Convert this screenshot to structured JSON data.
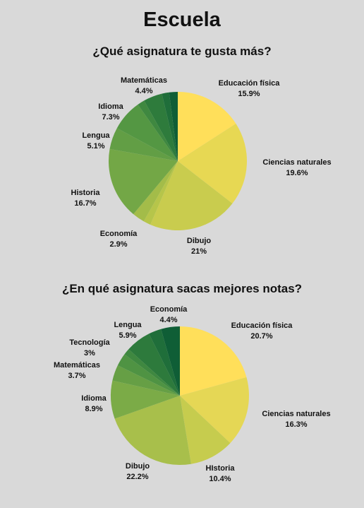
{
  "page": {
    "title": "Escuela"
  },
  "chart_data": [
    {
      "type": "pie",
      "title": "¿Qué asignatura te gusta más?",
      "slices": [
        {
          "label": "Educación física",
          "value": 15.9,
          "display": "15.9%",
          "color": "#ffdf5a"
        },
        {
          "label": "Ciencias naturales",
          "value": 19.6,
          "display": "19.6%",
          "color": "#e7d853"
        },
        {
          "label": "Dibujo",
          "value": 21,
          "display": "21%",
          "color": "#c9cc4e"
        },
        {
          "label": "",
          "value": 1.7,
          "display": "",
          "color": "#b6c54a"
        },
        {
          "label": "Economía",
          "value": 2.9,
          "display": "2.9%",
          "color": "#a3bc49"
        },
        {
          "label": "Historia",
          "value": 16.7,
          "display": "16.7%",
          "color": "#73a746"
        },
        {
          "label": "Lengua",
          "value": 5.1,
          "display": "5.1%",
          "color": "#629e45"
        },
        {
          "label": "Idioma",
          "value": 7.3,
          "display": "7.3%",
          "color": "#549743"
        },
        {
          "label": "",
          "value": 1.7,
          "display": "",
          "color": "#3f8840"
        },
        {
          "label": "Matemáticas",
          "value": 4.4,
          "display": "4.4%",
          "color": "#2e7b3c"
        },
        {
          "label": "",
          "value": 1.7,
          "display": "",
          "color": "#1f6e3a"
        },
        {
          "label": "",
          "value": 2.0,
          "display": "",
          "color": "#0f5e36"
        }
      ]
    },
    {
      "type": "pie",
      "title": "¿En qué asignatura sacas mejores notas?",
      "slices": [
        {
          "label": "Educación física",
          "value": 20.7,
          "display": "20.7%",
          "color": "#ffdf5a"
        },
        {
          "label": "Ciencias naturales",
          "value": 16.3,
          "display": "16.3%",
          "color": "#e5d755"
        },
        {
          "label": "HIstoria",
          "value": 10.4,
          "display": "10.4%",
          "color": "#c6cc4e"
        },
        {
          "label": "Dibujo",
          "value": 22.2,
          "display": "22.2%",
          "color": "#a8bf4b"
        },
        {
          "label": "Idioma",
          "value": 8.9,
          "display": "8.9%",
          "color": "#7bab47"
        },
        {
          "label": "Matemáticas",
          "value": 3.7,
          "display": "3.7%",
          "color": "#669f45"
        },
        {
          "label": "Tecnología",
          "value": 3,
          "display": "3%",
          "color": "#4f9343"
        },
        {
          "label": "",
          "value": 1.5,
          "display": "",
          "color": "#3f8840"
        },
        {
          "label": "Lengua",
          "value": 5.9,
          "display": "5.9%",
          "color": "#2d7a3c"
        },
        {
          "label": "",
          "value": 3.0,
          "display": "",
          "color": "#1f6e3a"
        },
        {
          "label": "Economía",
          "value": 4.4,
          "display": "4.4%",
          "color": "#0f5e36"
        }
      ]
    }
  ]
}
